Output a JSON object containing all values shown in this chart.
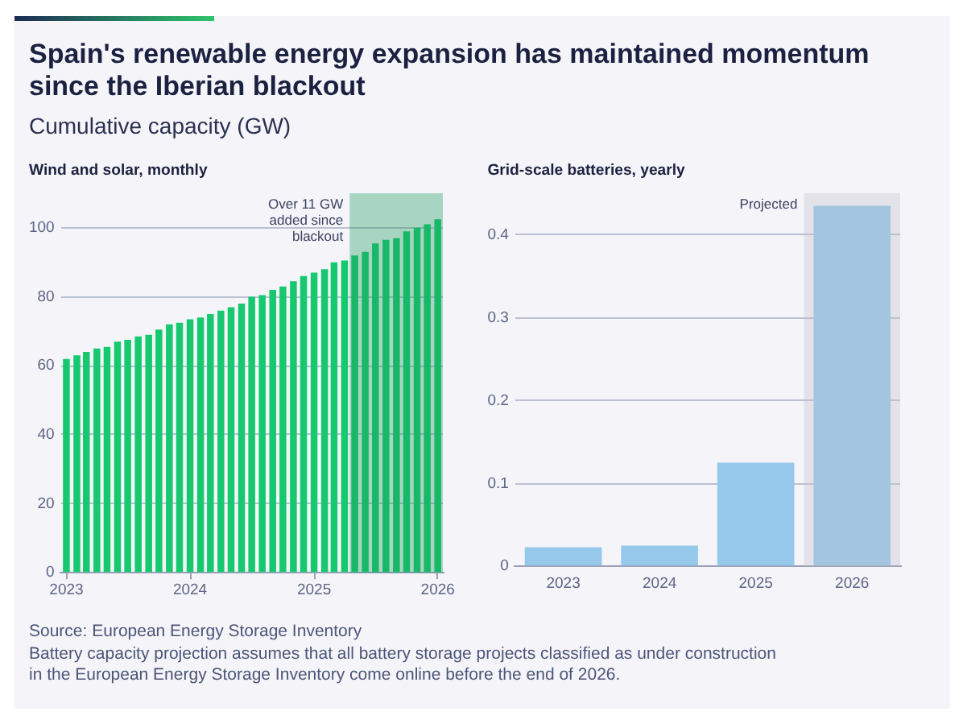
{
  "chart_data": [
    {
      "type": "other",
      "title": "Spain's renewable energy expansion has maintained momentum since the Iberian blackout",
      "subtitle": "Cumulative capacity (GW)"
    },
    {
      "type": "bar",
      "title": "Wind and solar, monthly",
      "x": [
        "2023-01",
        "2023-02",
        "2023-03",
        "2023-04",
        "2023-05",
        "2023-06",
        "2023-07",
        "2023-08",
        "2023-09",
        "2023-10",
        "2023-11",
        "2023-12",
        "2024-01",
        "2024-02",
        "2024-03",
        "2024-04",
        "2024-05",
        "2024-06",
        "2024-07",
        "2024-08",
        "2024-09",
        "2024-10",
        "2024-11",
        "2024-12",
        "2025-01",
        "2025-02",
        "2025-03",
        "2025-04",
        "2025-05",
        "2025-06",
        "2025-07",
        "2025-08",
        "2025-09",
        "2025-10",
        "2025-11",
        "2025-12",
        "2026-01"
      ],
      "values": [
        62,
        63,
        64,
        65,
        65.5,
        67,
        67.5,
        68.5,
        69,
        70.5,
        72,
        72.5,
        73.5,
        74,
        75,
        76,
        77,
        78,
        80,
        80.5,
        82,
        83,
        84.5,
        86,
        87,
        88,
        90,
        90.5,
        92,
        93,
        95.5,
        96.5,
        97,
        99,
        100,
        101,
        102.5
      ],
      "color": "#16c96f",
      "xlim": [
        "2022-12-16",
        "2026-01-16"
      ],
      "xticks": [
        "2023",
        "2024",
        "2025",
        "2026"
      ],
      "ylim": [
        0,
        110
      ],
      "yticks": [
        0,
        20,
        40,
        60,
        80,
        100
      ],
      "grid": "y",
      "bands": [
        {
          "axis": "x",
          "from": "2025-04-16",
          "to": "2026-01-16",
          "label": "Over 11 GW added since blackout",
          "color": "#1a9a5c"
        }
      ]
    },
    {
      "type": "bar",
      "title": "Grid-scale batteries, yearly",
      "categories": [
        "2023",
        "2024",
        "2025",
        "2026"
      ],
      "values": [
        0.023,
        0.025,
        0.125,
        0.435
      ],
      "color": "#96c8ec",
      "ylim": [
        0,
        0.45
      ],
      "yticks": [
        0,
        0.1,
        0.2,
        0.3,
        0.4
      ],
      "grid": "y",
      "bands": [
        {
          "axis": "x",
          "from": "2026",
          "to": "2026",
          "label": "Projected",
          "color": "#c0c0c8"
        }
      ]
    },
    {
      "type": "other",
      "annotations": [
        "Source: European Energy Storage Inventory",
        "Battery capacity projection assumes that all battery storage projects classified as under construction in the European Energy Storage Inventory come online before the end of 2026."
      ]
    }
  ]
}
